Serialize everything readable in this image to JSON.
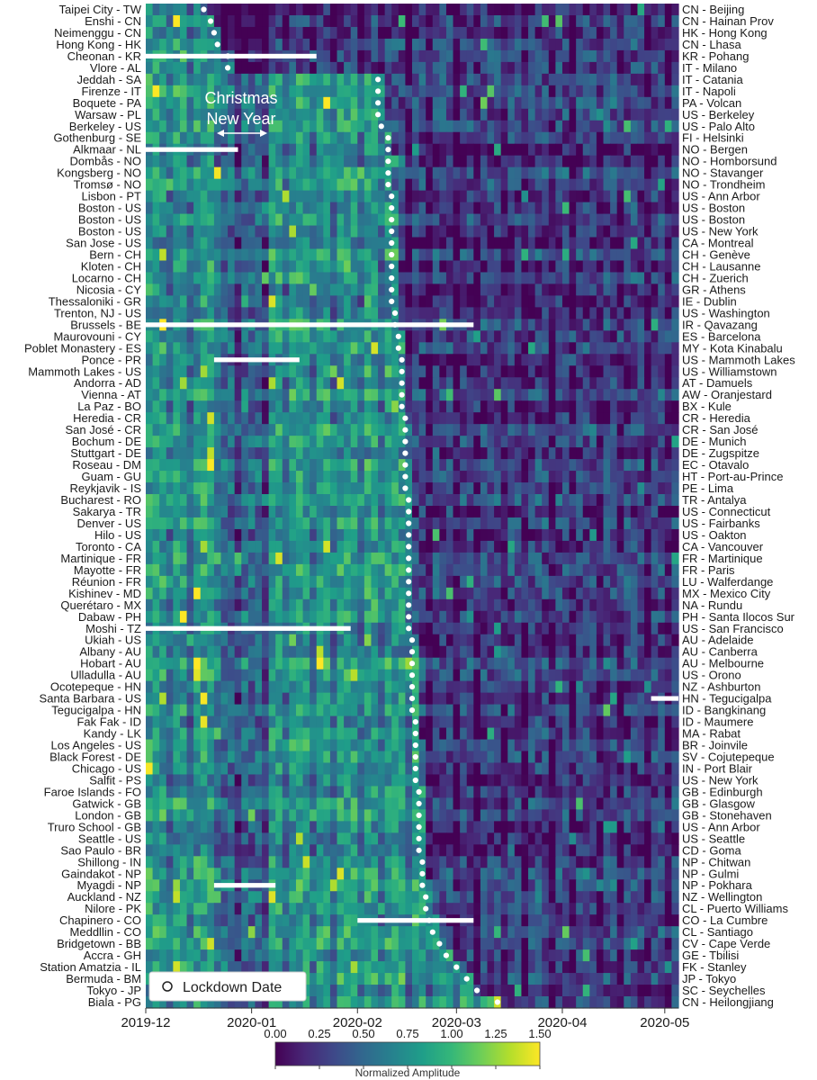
{
  "chart_data": {
    "type": "heatmap",
    "title": "",
    "x_ticks": [
      "2019-12",
      "2020-01",
      "2020-02",
      "2020-03",
      "2020-04",
      "2020-05"
    ],
    "x_range": [
      "2019-12-01",
      "2020-05-05"
    ],
    "rows_left": [
      "Taipei City - TW",
      "Enshi - CN",
      "Neimenggu - CN",
      "Hong Kong - HK",
      "Cheonan - KR",
      "Vlore - AL",
      "Jeddah - SA",
      "Firenze - IT",
      "Boquete - PA",
      "Warsaw - PL",
      "Berkeley - US",
      "Gothenburg - SE",
      "Alkmaar - NL",
      "Dombås - NO",
      "Kongsberg - NO",
      "Tromsø - NO",
      "Lisbon - PT",
      "Boston - US",
      "Boston - US",
      "Boston - US",
      "San Jose - US",
      "Bern - CH",
      "Kloten - CH",
      "Locarno - CH",
      "Nicosia - CY",
      "Thessaloniki - GR",
      "Trenton, NJ - US",
      "Brussels - BE",
      "Maurovouni - CY",
      "Poblet Monastery - ES",
      "Ponce - PR",
      "Mammoth Lakes - US",
      "Andorra - AD",
      "Vienna - AT",
      "La Paz - BO",
      "Heredia - CR",
      "San José - CR",
      "Bochum - DE",
      "Stuttgart - DE",
      "Roseau - DM",
      "Guam - GU",
      "Reykjavik - IS",
      "Bucharest - RO",
      "Sakarya - TR",
      "Denver - US",
      "Hilo - US",
      "Toronto - CA",
      "Martinique - FR",
      "Mayotte - FR",
      "Réunion - FR",
      "Kishinev - MD",
      "Querétaro - MX",
      "Dabaw - PH",
      "Moshi - TZ",
      "Ukiah - US",
      "Albany - AU",
      "Hobart - AU",
      "Ulladulla - AU",
      "Ocotepeque - HN",
      "Santa Barbara - US",
      "Tegucigalpa - HN",
      "Fak Fak - ID",
      "Kandy - LK",
      "Los Angeles - US",
      "Black Forest - DE",
      "Chicago - US",
      "Salfit - PS",
      "Faroe Islands - FO",
      "Gatwick - GB",
      "London - GB",
      "Truro School - GB",
      "Seattle  - US",
      "Sao Paulo - BR",
      "Shillong - IN",
      "Gaindakot - NP",
      "Myagdi - NP",
      "Auckland - NZ",
      "Nilore - PK",
      "Chapinero - CO",
      "Meddllin - CO",
      "Bridgetown - BB",
      "Accra - GH",
      "Station Amatzia - IL",
      "Bermuda - BM",
      "Tokyo - JP",
      "Biala - PG"
    ],
    "rows_right": [
      "CN - Beijing",
      "CN - Hainan Prov",
      "HK - Hong Kong",
      "CN - Lhasa",
      "KR - Pohang",
      "IT - Milano",
      "IT - Catania",
      "IT - Napoli",
      "PA - Volcan",
      "US - Berkeley",
      "US - Palo Alto",
      "FI - Helsinki",
      "NO - Bergen",
      "NO - Homborsund",
      "NO - Stavanger",
      "NO - Trondheim",
      "US - Ann Arbor",
      "US - Boston",
      "US - Boston",
      "US - New York",
      "CA - Montreal",
      "CH - Genève",
      "CH - Lausanne",
      "CH - Zuerich",
      "GR - Athens",
      "IE - Dublin",
      "US - Washington",
      "IR - Qavazang",
      "ES - Barcelona",
      "MY - Kota Kinabalu",
      "US - Mammoth Lakes",
      "US - Williamstown",
      "AT - Damuels",
      "AW - Oranjestard",
      "BX - Kule",
      "CR - Heredia",
      "CR - San José",
      "DE - Munich",
      "DE - Zugspitze",
      "EC - Otavalo",
      "HT - Port-au-Prince",
      "PE - Lima",
      "TR - Antalya",
      "US - Connecticut",
      "US - Fairbanks",
      "US - Oakton",
      "CA - Vancouver",
      "FR - Martinique",
      "FR - Paris",
      "LU - Walferdange",
      "MX - Mexico City",
      "NA - Rundu",
      "PH - Santa Ilocos Sur",
      "US - San Francisco",
      "AU - Adelaide",
      "AU - Canberra",
      "AU - Melbourne",
      "US - Orono",
      "NZ - Ashburton",
      "HN - Tegucigalpa",
      "ID - Bangkinang",
      "ID - Maumere",
      "MA - Rabat",
      "BR - Joinvile",
      "SV - Cojutepeque",
      "IN - Port Blair",
      "US - New York",
      "GB - Edinburgh",
      "GB - Glasgow",
      "GB - Stonehaven",
      "US - Ann Arbor",
      "US - Seattle",
      "CD - Goma",
      "NP - Chitwan",
      "NP - Gulmi",
      "NP - Pokhara",
      "NZ - Wellington",
      "CL - Puerto Williams",
      "CO - La Cumbre",
      "CL - Santiago",
      "CV - Cape Verde",
      "GE - Tbilisi",
      "FK - Stanley",
      "JP - Tokyo",
      "SC - Seychelles",
      "CN - Heilongjiang"
    ],
    "lockdown_days": [
      17,
      19,
      20,
      21,
      24,
      24,
      68,
      68,
      68,
      68,
      69,
      71,
      71,
      71,
      71,
      71,
      72,
      72,
      72,
      72,
      72,
      72,
      72,
      72,
      72,
      72,
      73,
      73,
      74,
      74,
      75,
      75,
      75,
      75,
      75,
      76,
      76,
      76,
      76,
      76,
      76,
      76,
      77,
      77,
      77,
      77,
      77,
      77,
      77,
      77,
      77,
      77,
      77,
      77,
      78,
      78,
      78,
      78,
      78,
      78,
      78,
      79,
      79,
      79,
      79,
      79,
      79,
      80,
      80,
      80,
      80,
      80,
      80,
      81,
      81,
      81,
      82,
      82,
      83,
      84,
      86,
      88,
      91,
      94,
      97,
      103
    ],
    "annotations": [
      "Christmas",
      "New Year"
    ],
    "legend": {
      "marker": "white-circle",
      "label": "Lockdown Date",
      "placement": "bottom-left"
    },
    "colorbar": {
      "label": "Normalized Amplitude",
      "ticks": [
        "0.00",
        "0.25",
        "0.50",
        "0.75",
        "1.00",
        "1.25",
        "1.50"
      ],
      "range": [
        0.0,
        1.5
      ],
      "colormap": "viridis",
      "stops": [
        "#440154",
        "#482878",
        "#3e4989",
        "#31688e",
        "#26828e",
        "#1f9e89",
        "#35b779",
        "#6ece58",
        "#b5de2b",
        "#fde725"
      ]
    }
  }
}
